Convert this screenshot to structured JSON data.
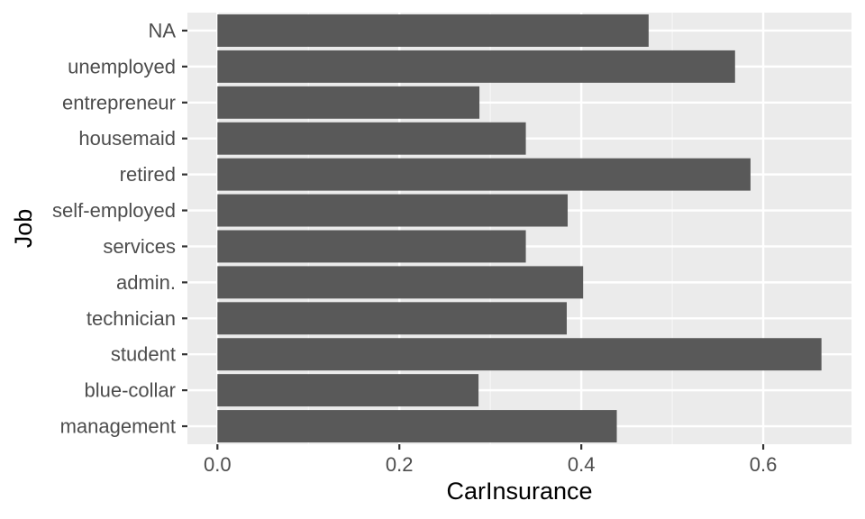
{
  "chart_data": {
    "type": "bar",
    "orientation": "horizontal",
    "title": "",
    "xlabel": "CarInsurance",
    "ylabel": "Job",
    "categories": [
      "NA",
      "unemployed",
      "entrepreneur",
      "housemaid",
      "retired",
      "self-employed",
      "services",
      "admin.",
      "technician",
      "student",
      "blue-collar",
      "management"
    ],
    "values": [
      0.474,
      0.569,
      0.288,
      0.339,
      0.586,
      0.385,
      0.339,
      0.402,
      0.384,
      0.664,
      0.287,
      0.439
    ],
    "xlim": [
      -0.033,
      0.697
    ],
    "xticks": [
      0.0,
      0.2,
      0.4,
      0.6
    ],
    "xtick_labels": [
      "0.0",
      "0.2",
      "0.4",
      "0.6"
    ],
    "grid": true,
    "legend": "none",
    "colors": {
      "bar": "#595959",
      "panel_background": "#ebebeb",
      "grid_major": "#ffffff",
      "grid_minor": "#f5f5f5",
      "tick_text": "#4d4d4d",
      "tick_mark": "#333333",
      "axis_title": "#000000"
    }
  }
}
